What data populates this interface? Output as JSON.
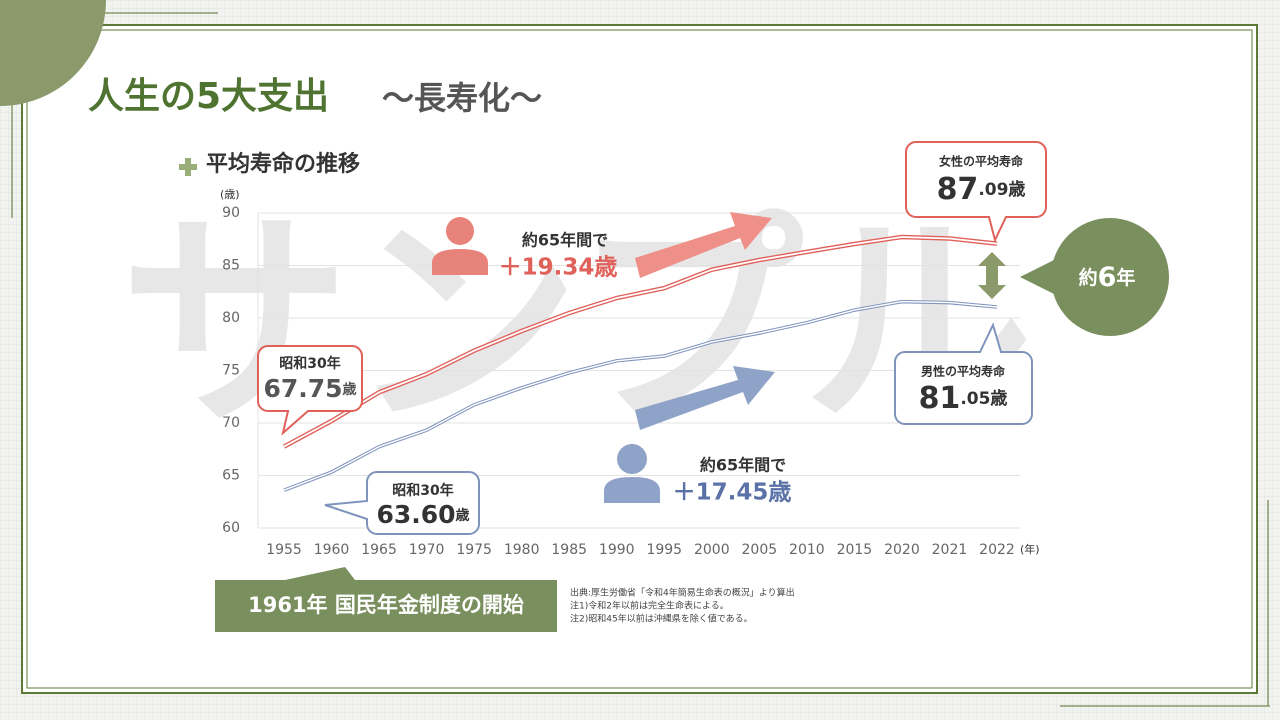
{
  "slide": {
    "title": "人生の5大支出",
    "title_sub": "～長寿化～",
    "watermark": "サンプル",
    "footer_box": "1961年 国民年金制度の開始",
    "notes": [
      "出典:厚生労働省「令和4年簡易生命表の概況」より算出",
      "注1)令和2年以前は完全生命表による。",
      "注2)昭和45年以前は沖縄県を除く値である。"
    ]
  },
  "chart_data": {
    "type": "line",
    "title": "平均寿命の推移",
    "y_label": "(歳)",
    "x_label": "(年)",
    "categories": [
      "1955",
      "1960",
      "1965",
      "1970",
      "1975",
      "1980",
      "1985",
      "1990",
      "1995",
      "2000",
      "2005",
      "2010",
      "2015",
      "2020",
      "2021",
      "2022"
    ],
    "series": [
      {
        "name": "女性の平均寿命",
        "color": "#e0605a",
        "values": [
          67.75,
          70.19,
          72.92,
          74.66,
          76.89,
          78.76,
          80.48,
          81.9,
          82.85,
          84.6,
          85.52,
          86.3,
          87.05,
          87.71,
          87.57,
          87.09
        ]
      },
      {
        "name": "男性の平均寿命",
        "color": "#7f94bd",
        "values": [
          63.6,
          65.32,
          67.74,
          69.31,
          71.73,
          73.35,
          74.78,
          75.92,
          76.38,
          77.72,
          78.56,
          79.55,
          80.75,
          81.56,
          81.47,
          81.05
        ]
      }
    ],
    "ylim": [
      60,
      90
    ],
    "yticks": [
      60,
      65,
      70,
      75,
      80,
      85,
      90
    ],
    "grid": true,
    "callouts": [
      {
        "head": "昭和30年",
        "big": "67.75",
        "small": "歳"
      },
      {
        "head": "昭和30年",
        "big": "63.60",
        "small": "歳"
      },
      {
        "big": "87",
        "small": ".09歳"
      },
      {
        "big": "81",
        "small": ".05歳"
      }
    ],
    "gains": [
      {
        "text": "約65年間で",
        "value": "＋19.34歳"
      },
      {
        "text": "約65年間で",
        "value": "＋17.45歳"
      }
    ],
    "difference": [
      "約",
      "6",
      "年"
    ]
  }
}
